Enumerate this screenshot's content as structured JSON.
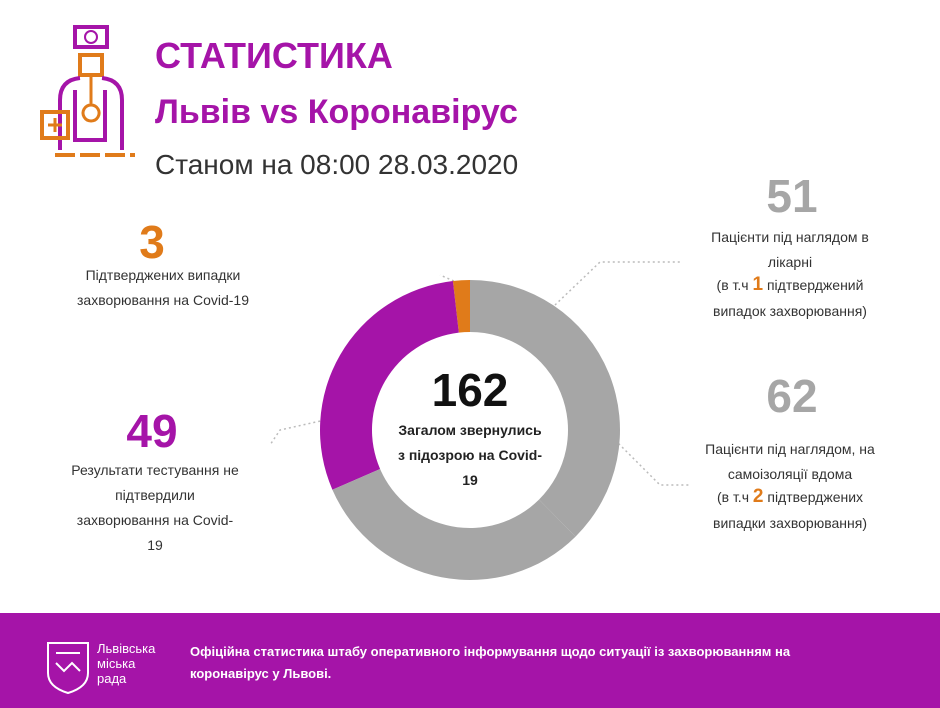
{
  "chart_data": {
    "type": "donut",
    "title": "СТАТИСТИКА",
    "subtitle": "Львів vs Коронавірус",
    "date": "Станом на 08:00 28.03.2020",
    "center": {
      "value": 162,
      "label": "Загалом звернулись з підозрою на Covid-19"
    },
    "segments": [
      {
        "value": 3,
        "color": "#e07b1a",
        "label": "Підтверджених випадки захворювання на Covid-19"
      },
      {
        "value": 49,
        "color": "#a514a8",
        "label": "Результати тестування не підтвердили захворювання на Covid-19"
      },
      {
        "value": 51,
        "color": "#a6a6a6",
        "label": "Пацієнти під наглядом в лікарні",
        "note": {
          "prefix": "(в т.ч",
          "value": 1,
          "suffix": "підтверджений випадок захворювання)"
        }
      },
      {
        "value": 62,
        "color": "#a6a6a6",
        "label": "Пацієнти під наглядом, на самоізоляції вдома",
        "note": {
          "prefix": "(в т.ч",
          "value": 2,
          "suffix": "підтверджених випадки захворювання)"
        }
      }
    ],
    "footer": {
      "org": "Львівська міська рада",
      "text": "Офіційна статистика штабу оперативного інформування щодо ситуації із захворюванням на коронавірус у Львові."
    }
  }
}
